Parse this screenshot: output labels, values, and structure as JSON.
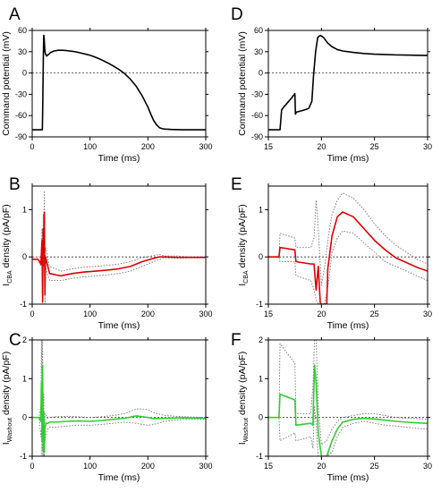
{
  "chart_data": [
    {
      "type": "line",
      "letter": "A",
      "ylabel": "Command potential (mV)",
      "xlabel": "Time (ms)",
      "xlim": [
        0,
        300
      ],
      "ylim": [
        -90,
        60
      ],
      "xticks": [
        0,
        100,
        200,
        300
      ],
      "yticks": [
        -90,
        -60,
        -30,
        0,
        30,
        60
      ],
      "zero_line": true,
      "series": [
        {
          "color": "#000000",
          "dash": false,
          "width": 1.6,
          "x": [
            0,
            17.5,
            18,
            18.6,
            19.2,
            20,
            20.6,
            21.3,
            22,
            23,
            25,
            28,
            32,
            38,
            45,
            52,
            60,
            70,
            80,
            90,
            100,
            110,
            120,
            130,
            140,
            150,
            160,
            170,
            180,
            190,
            200,
            205,
            210,
            215,
            220,
            225,
            230,
            240,
            260,
            280,
            300
          ],
          "y": [
            -80,
            -80,
            -60,
            -20,
            20,
            53,
            50,
            40,
            30,
            27,
            24,
            26,
            29,
            31,
            32,
            32,
            31.5,
            30.5,
            29,
            27,
            25,
            22,
            18.5,
            14.5,
            10,
            5,
            -1,
            -9,
            -19,
            -32,
            -48,
            -58,
            -67,
            -73,
            -77,
            -78.5,
            -79,
            -79.5,
            -80,
            -80,
            -80
          ]
        }
      ]
    },
    {
      "type": "line",
      "letter": "D",
      "ylabel": "Command potential (mV)",
      "xlabel": "Time (ms)",
      "xlim": [
        15,
        30
      ],
      "ylim": [
        -90,
        60
      ],
      "xticks": [
        15,
        20,
        25,
        30
      ],
      "yticks": [
        -90,
        -60,
        -30,
        0,
        30,
        60
      ],
      "zero_line": true,
      "series": [
        {
          "color": "#000000",
          "dash": false,
          "width": 1.6,
          "x": [
            15,
            16.1,
            16.25,
            16.45,
            17.2,
            17.5,
            17.55,
            17.65,
            18.2,
            18.8,
            19.1,
            19.25,
            19.45,
            19.65,
            19.9,
            20.2,
            20.6,
            21,
            21.5,
            22,
            23,
            24,
            25,
            26,
            27,
            28,
            29,
            30
          ],
          "y": [
            -80,
            -80,
            -52,
            -48,
            -35,
            -29,
            -58,
            -55,
            -53,
            -50,
            -40,
            -5,
            30,
            50,
            53,
            50,
            42,
            37,
            33,
            31,
            29,
            27.5,
            26.5,
            26,
            25.5,
            25.2,
            25,
            24.8
          ]
        }
      ]
    },
    {
      "type": "line",
      "letter": "B",
      "ylabel": "I_CBA density (pA/pF)",
      "ylabel_main": "I",
      "ylabel_sub": "CBA",
      "ylabel_rest": " density (pA/pF)",
      "xlabel": "Time (ms)",
      "xlim": [
        0,
        300
      ],
      "ylim": [
        -1,
        1.5
      ],
      "xticks": [
        0,
        100,
        200,
        300
      ],
      "yticks": [
        -1,
        0,
        1
      ],
      "zero_line": true,
      "series": [
        {
          "color": "#777777",
          "dash": true,
          "width": 0.9,
          "x": [
            0,
            10,
            15,
            17,
            18,
            19,
            20,
            21,
            22,
            23,
            25,
            30,
            40,
            50,
            70,
            90,
            110,
            130,
            150,
            170,
            190,
            210,
            220,
            230,
            250,
            270,
            300
          ],
          "y": [
            -0.05,
            -0.05,
            -0.1,
            0.6,
            -0.8,
            0.9,
            0.4,
            1.4,
            -0.6,
            0.2,
            0.1,
            -0.2,
            -0.25,
            -0.3,
            -0.25,
            -0.22,
            -0.2,
            -0.18,
            -0.15,
            -0.1,
            -0.02,
            0.03,
            0.05,
            0.02,
            0.02,
            0,
            0
          ]
        },
        {
          "color": "#777777",
          "dash": true,
          "width": 0.9,
          "x": [
            0,
            10,
            15,
            17,
            18,
            19,
            20,
            21,
            22,
            23,
            25,
            30,
            40,
            50,
            70,
            90,
            110,
            130,
            150,
            170,
            190,
            210,
            220,
            230,
            250,
            270,
            300
          ],
          "y": [
            -0.05,
            -0.05,
            -0.2,
            0.1,
            -1.0,
            0.3,
            -0.2,
            0.6,
            -1.0,
            -0.2,
            -0.3,
            -0.5,
            -0.5,
            -0.5,
            -0.45,
            -0.42,
            -0.4,
            -0.38,
            -0.35,
            -0.3,
            -0.2,
            -0.1,
            -0.05,
            -0.02,
            -0.03,
            -0.02,
            -0.02
          ]
        },
        {
          "color": "#dd0000",
          "dash": false,
          "width": 1.6,
          "x": [
            0,
            10,
            15,
            17,
            18,
            19,
            20,
            21,
            22,
            23,
            25,
            30,
            40,
            50,
            70,
            90,
            110,
            130,
            150,
            170,
            190,
            210,
            220,
            230,
            250,
            270,
            300
          ],
          "y": [
            -0.05,
            -0.05,
            -0.15,
            0.35,
            -0.95,
            0.6,
            0.1,
            0.95,
            -0.8,
            0,
            -0.1,
            -0.35,
            -0.38,
            -0.4,
            -0.35,
            -0.32,
            -0.3,
            -0.28,
            -0.25,
            -0.2,
            -0.1,
            -0.03,
            0,
            0,
            -0.01,
            -0.01,
            -0.01
          ]
        }
      ]
    },
    {
      "type": "line",
      "letter": "E",
      "ylabel": "I_CBA density (pA/pF)",
      "ylabel_main": "I",
      "ylabel_sub": "CBA",
      "ylabel_rest": " density (pA/pF)",
      "xlabel": "Time (ms)",
      "xlim": [
        15,
        30
      ],
      "ylim": [
        -1,
        1.5
      ],
      "xticks": [
        15,
        20,
        25,
        30
      ],
      "yticks": [
        -1,
        0,
        1
      ],
      "zero_line": true,
      "series": [
        {
          "color": "#777777",
          "dash": true,
          "width": 0.9,
          "x": [
            15,
            16,
            16.1,
            17.5,
            17.6,
            19,
            19.3,
            19.5,
            19.7,
            20,
            20.3,
            20.7,
            21,
            21.5,
            22,
            23,
            24,
            25,
            26,
            27,
            28,
            29,
            30
          ],
          "y": [
            0,
            0,
            0.5,
            0.4,
            0.2,
            0.2,
            0.4,
            1.2,
            0.6,
            -0.6,
            -0.2,
            0.5,
            0.9,
            1.2,
            1.35,
            1.25,
            1.0,
            0.7,
            0.45,
            0.25,
            0.1,
            -0.05,
            -0.15
          ]
        },
        {
          "color": "#777777",
          "dash": true,
          "width": 0.9,
          "x": [
            15,
            16,
            16.1,
            17.5,
            17.6,
            19,
            19.3,
            19.5,
            19.7,
            20,
            20.3,
            20.7,
            21,
            21.5,
            22,
            23,
            24,
            25,
            26,
            27,
            28,
            29,
            30
          ],
          "y": [
            0,
            0,
            -0.1,
            -0.1,
            -0.4,
            -0.5,
            -0.7,
            -0.9,
            -1.0,
            -1.0,
            -1.0,
            -0.5,
            0.1,
            0.4,
            0.55,
            0.5,
            0.3,
            0.1,
            -0.1,
            -0.2,
            -0.3,
            -0.4,
            -0.5
          ]
        },
        {
          "color": "#dd0000",
          "dash": false,
          "width": 1.6,
          "x": [
            15,
            16,
            16.1,
            17.5,
            17.6,
            19,
            19.3,
            19.5,
            19.7,
            19.9,
            20.5,
            20.6,
            21,
            21.5,
            22,
            23,
            24,
            25,
            26,
            27,
            28,
            29,
            30
          ],
          "y": [
            0,
            0,
            0.2,
            0.15,
            -0.1,
            -0.15,
            -0.15,
            -0.7,
            -0.2,
            -1.0,
            -1.0,
            -0.25,
            0.45,
            0.85,
            0.95,
            0.85,
            0.6,
            0.35,
            0.15,
            -0.02,
            -0.12,
            -0.22,
            -0.3
          ]
        }
      ]
    },
    {
      "type": "line",
      "letter": "C",
      "ylabel": "I_Washout density (pA/pF)",
      "ylabel_main": "I",
      "ylabel_sub": "Washout",
      "ylabel_rest": " density (pA/pF)",
      "xlabel": "Time (ms)",
      "xlim": [
        0,
        300
      ],
      "ylim": [
        -1,
        2
      ],
      "xticks": [
        0,
        100,
        200,
        300
      ],
      "yticks": [
        -1,
        0,
        1,
        2
      ],
      "zero_line": true,
      "series": [
        {
          "color": "#777777",
          "dash": true,
          "width": 0.9,
          "x": [
            0,
            12,
            15,
            16,
            17,
            18,
            19,
            20,
            21,
            22,
            24,
            27,
            30,
            40,
            60,
            80,
            100,
            120,
            140,
            160,
            180,
            190,
            200,
            210,
            230,
            260,
            300
          ],
          "y": [
            0,
            0,
            0.3,
            2.0,
            -0.2,
            2.0,
            -0.7,
            0.6,
            -0.8,
            0.1,
            0.05,
            -0.02,
            0,
            0.02,
            0.03,
            0.02,
            0,
            0.02,
            0.05,
            0.1,
            0.22,
            0.22,
            0.2,
            0.12,
            0.05,
            0.02,
            0
          ]
        },
        {
          "color": "#777777",
          "dash": true,
          "width": 0.9,
          "x": [
            0,
            12,
            15,
            16,
            17,
            18,
            19,
            20,
            21,
            22,
            24,
            27,
            30,
            40,
            60,
            80,
            100,
            120,
            140,
            160,
            180,
            190,
            200,
            210,
            230,
            260,
            300
          ],
          "y": [
            0,
            0,
            -0.5,
            -0.3,
            -1.0,
            0.3,
            -1.0,
            -0.3,
            -1.0,
            -0.6,
            -0.4,
            -0.3,
            -0.25,
            -0.25,
            -0.22,
            -0.2,
            -0.2,
            -0.18,
            -0.15,
            -0.12,
            -0.15,
            -0.18,
            -0.2,
            -0.18,
            -0.1,
            -0.05,
            -0.05
          ]
        },
        {
          "color": "#33cc33",
          "dash": false,
          "width": 1.6,
          "x": [
            0,
            12,
            15,
            16,
            17,
            18,
            19,
            20,
            21,
            22,
            24,
            27,
            30,
            40,
            60,
            80,
            100,
            120,
            140,
            160,
            180,
            190,
            200,
            210,
            230,
            260,
            300
          ],
          "y": [
            0,
            0,
            -0.1,
            0.9,
            -0.6,
            1.35,
            -0.85,
            0.15,
            -0.9,
            -0.25,
            -0.15,
            -0.15,
            -0.12,
            -0.12,
            -0.1,
            -0.09,
            -0.1,
            -0.08,
            -0.05,
            -0.02,
            0.04,
            0.02,
            0,
            -0.03,
            -0.02,
            -0.01,
            -0.02
          ]
        }
      ]
    },
    {
      "type": "line",
      "letter": "F",
      "ylabel": "I_Washout density (pA/pF)",
      "ylabel_main": "I",
      "ylabel_sub": "Washout",
      "ylabel_rest": " density (pA/pF)",
      "xlabel": "Time (ms)",
      "xlim": [
        15,
        30
      ],
      "ylim": [
        -1,
        2
      ],
      "xticks": [
        15,
        20,
        25,
        30
      ],
      "yticks": [
        -1,
        0,
        1,
        2
      ],
      "zero_line": true,
      "series": [
        {
          "color": "#777777",
          "dash": true,
          "width": 0.9,
          "x": [
            15,
            16,
            16.1,
            17.5,
            17.6,
            19,
            19.2,
            19.35,
            19.5,
            19.7,
            20,
            20.5,
            21,
            21.5,
            22,
            23,
            24,
            25,
            26,
            27,
            28,
            29,
            30
          ],
          "y": [
            0,
            0,
            1.9,
            1.4,
            0.1,
            0.1,
            0.8,
            2.0,
            2.0,
            0.3,
            -0.7,
            -0.6,
            -0.3,
            -0.1,
            0,
            0.05,
            0.1,
            0.1,
            0.05,
            0,
            -0.02,
            -0.03,
            -0.05
          ]
        },
        {
          "color": "#777777",
          "dash": true,
          "width": 0.9,
          "x": [
            15,
            16,
            16.1,
            17.5,
            17.6,
            19,
            19.2,
            19.35,
            19.5,
            19.7,
            20,
            20.5,
            21,
            21.5,
            22,
            23,
            24,
            25,
            26,
            27,
            28,
            29,
            30
          ],
          "y": [
            0,
            0,
            -0.6,
            -0.4,
            -0.6,
            -0.5,
            -0.8,
            0.3,
            -0.2,
            -1.0,
            -1.0,
            -1.0,
            -0.9,
            -0.5,
            -0.25,
            -0.15,
            -0.1,
            -0.15,
            -0.2,
            -0.22,
            -0.25,
            -0.28,
            -0.3
          ]
        },
        {
          "color": "#33cc33",
          "dash": false,
          "width": 1.6,
          "x": [
            15,
            16,
            16.1,
            17.5,
            17.6,
            19,
            19.2,
            19.35,
            19.5,
            19.7,
            20,
            20.5,
            21,
            21.5,
            22,
            23,
            24,
            25,
            26,
            27,
            28,
            29,
            30
          ],
          "y": [
            0,
            0,
            0.6,
            0.45,
            -0.2,
            -0.15,
            -0.2,
            1.35,
            0.9,
            -0.4,
            -1.0,
            -1.0,
            -0.6,
            -0.3,
            -0.12,
            -0.05,
            -0.02,
            -0.04,
            -0.07,
            -0.1,
            -0.12,
            -0.14,
            -0.15
          ]
        }
      ]
    }
  ]
}
